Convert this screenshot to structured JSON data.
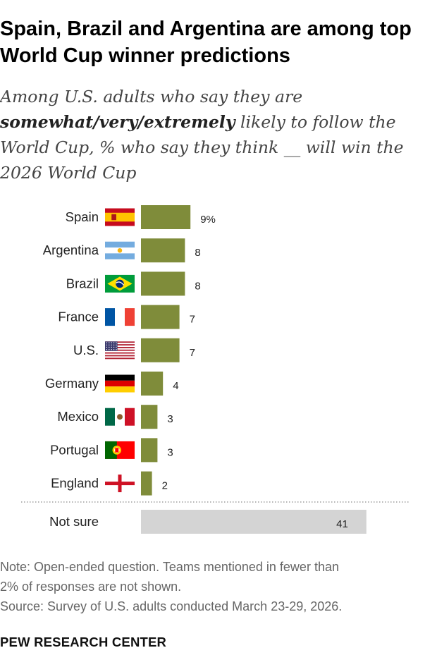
{
  "title": "Spain, Brazil and Argentina are among top World Cup winner predictions",
  "subtitle": {
    "part1": "Among U.S. adults who say they are ",
    "emphasis": "somewhat/very/extremely",
    "part2": " likely to follow the World Cup, % who say they think __ will win the 2026 World Cup"
  },
  "chart_data": {
    "type": "bar",
    "orientation": "horizontal",
    "categories": [
      "Spain",
      "Argentina",
      "Brazil",
      "France",
      "U.S.",
      "Germany",
      "Mexico",
      "Portugal",
      "England",
      "Not sure"
    ],
    "values": [
      9,
      8,
      8,
      7,
      7,
      4,
      3,
      3,
      2,
      41
    ],
    "value_labels": [
      "9%",
      "8",
      "8",
      "7",
      "7",
      "4",
      "3",
      "3",
      "2",
      "41"
    ],
    "flags": [
      "spain-flag-icon",
      "argentina-flag-icon",
      "brazil-flag-icon",
      "france-flag-icon",
      "us-flag-icon",
      "germany-flag-icon",
      "mexico-flag-icon",
      "portugal-flag-icon",
      "england-flag-icon",
      ""
    ],
    "colors": {
      "bar": "#7f8c3a",
      "not_sure_bar": "#d4d4d4"
    },
    "grid": false,
    "separator_before": "Not sure"
  },
  "note": {
    "line1": "Note: Open-ended question. Teams mentioned in fewer than",
    "line2": "2% of responses are not shown.",
    "source": "Source: Survey of U.S. adults conducted March 23-29, 2026."
  },
  "brand": "PEW RESEARCH CENTER"
}
